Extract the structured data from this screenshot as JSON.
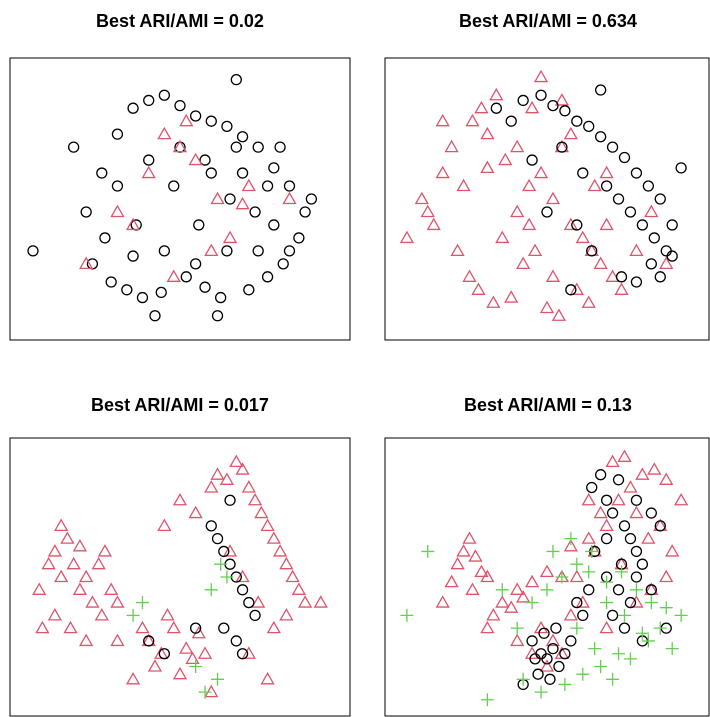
{
  "chart_data": [
    {
      "type": "scatter",
      "title": "Best ARI/AMI = 0.02",
      "xlim": [
        0,
        100
      ],
      "ylim": [
        0,
        100
      ],
      "series": [
        {
          "color": "#000000",
          "marker": "circle",
          "x": [
            3,
            16,
            68,
            42,
            62,
            20,
            25,
            30,
            35,
            40,
            45,
            50,
            55,
            60,
            65,
            70,
            75,
            80,
            85,
            90,
            22,
            28,
            33,
            38,
            44,
            52,
            58,
            63,
            72,
            78,
            83,
            88,
            92,
            48,
            56,
            66,
            74,
            36,
            26,
            82,
            30,
            40,
            50,
            60,
            70,
            80,
            45,
            55,
            65,
            75,
            35,
            85,
            58,
            68,
            78
          ],
          "y": [
            30,
            70,
            96,
            5,
            5,
            45,
            60,
            75,
            85,
            88,
            90,
            86,
            82,
            80,
            78,
            74,
            70,
            62,
            55,
            45,
            25,
            18,
            15,
            12,
            14,
            20,
            16,
            12,
            15,
            20,
            25,
            35,
            50,
            55,
            40,
            50,
            45,
            40,
            35,
            70,
            55,
            65,
            70,
            60,
            60,
            40,
            30,
            25,
            30,
            30,
            28,
            30,
            65,
            70,
            55
          ]
        },
        {
          "color": "#df536b",
          "marker": "triangle",
          "x": [
            45,
            50,
            55,
            62,
            70,
            72,
            30,
            35,
            60,
            66,
            40,
            52,
            20,
            85,
            48
          ],
          "y": [
            75,
            70,
            65,
            50,
            48,
            55,
            45,
            40,
            30,
            35,
            60,
            80,
            25,
            50,
            20
          ]
        }
      ]
    },
    {
      "type": "scatter",
      "title": "Best ARI/AMI = 0.634",
      "xlim": [
        0,
        100
      ],
      "ylim": [
        0,
        100
      ],
      "series": [
        {
          "color": "#df536b",
          "marker": "triangle",
          "x": [
            3,
            8,
            12,
            15,
            18,
            22,
            25,
            28,
            30,
            33,
            36,
            40,
            44,
            48,
            52,
            55,
            58,
            62,
            65,
            68,
            72,
            75,
            80,
            85,
            90,
            20,
            24,
            27,
            32,
            38,
            42,
            46,
            50,
            54,
            60,
            64,
            70,
            15,
            10,
            35,
            45,
            55,
            48,
            58,
            40,
            30,
            66,
            52,
            44,
            70
          ],
          "y": [
            35,
            50,
            40,
            60,
            70,
            55,
            80,
            85,
            75,
            90,
            65,
            45,
            55,
            60,
            50,
            70,
            40,
            35,
            30,
            25,
            20,
            15,
            30,
            45,
            25,
            30,
            20,
            15,
            10,
            12,
            25,
            30,
            8,
            5,
            15,
            10,
            40,
            80,
            45,
            35,
            85,
            88,
            97,
            75,
            70,
            62,
            55,
            20,
            40,
            60
          ]
        },
        {
          "color": "#000000",
          "marker": "circle",
          "x": [
            33,
            38,
            42,
            48,
            52,
            56,
            60,
            64,
            68,
            72,
            76,
            80,
            84,
            88,
            92,
            95,
            70,
            74,
            78,
            82,
            86,
            90,
            60,
            65,
            75,
            80,
            85,
            58,
            62,
            45,
            55,
            50,
            88,
            92,
            68
          ],
          "y": [
            85,
            80,
            88,
            90,
            86,
            84,
            80,
            78,
            74,
            70,
            66,
            60,
            55,
            50,
            40,
            62,
            55,
            50,
            45,
            40,
            35,
            30,
            40,
            30,
            20,
            18,
            25,
            15,
            60,
            65,
            70,
            45,
            20,
            28,
            92
          ]
        }
      ]
    },
    {
      "type": "scatter",
      "title": "Best ARI/AMI = 0.017",
      "xlim": [
        0,
        100
      ],
      "ylim": [
        0,
        100
      ],
      "series": [
        {
          "color": "#df536b",
          "marker": "triangle",
          "x": [
            5,
            8,
            10,
            12,
            14,
            16,
            18,
            20,
            22,
            10,
            15,
            20,
            25,
            6,
            12,
            18,
            24,
            28,
            30,
            26,
            45,
            50,
            55,
            60,
            62,
            65,
            68,
            70,
            72,
            74,
            76,
            78,
            80,
            82,
            84,
            86,
            88,
            90,
            70,
            75,
            80,
            66,
            72,
            78,
            84,
            40,
            44,
            48,
            52,
            56,
            42,
            50,
            54,
            38,
            46,
            58,
            35,
            30,
            95,
            60
          ],
          "y": [
            45,
            55,
            60,
            50,
            65,
            55,
            45,
            50,
            40,
            35,
            30,
            25,
            35,
            30,
            70,
            62,
            55,
            45,
            25,
            60,
            70,
            80,
            75,
            85,
            90,
            88,
            95,
            92,
            85,
            80,
            75,
            70,
            65,
            60,
            55,
            50,
            45,
            40,
            50,
            40,
            30,
            60,
            20,
            10,
            35,
            25,
            20,
            30,
            22,
            28,
            15,
            12,
            18,
            30,
            35,
            20,
            10,
            40,
            40,
            5
          ]
        },
        {
          "color": "#000000",
          "marker": "circle",
          "x": [
            60,
            62,
            64,
            66,
            68,
            70,
            72,
            74,
            64,
            68,
            40,
            45,
            55,
            70,
            66
          ],
          "y": [
            70,
            65,
            60,
            55,
            50,
            45,
            40,
            35,
            30,
            25,
            25,
            20,
            30,
            20,
            80
          ]
        },
        {
          "color": "#61d04f",
          "marker": "plus",
          "x": [
            35,
            38,
            60,
            65,
            62,
            58,
            55,
            63
          ],
          "y": [
            35,
            40,
            45,
            50,
            10,
            5,
            15,
            55
          ]
        }
      ]
    },
    {
      "type": "scatter",
      "title": "Best ARI/AMI = 0.13",
      "xlim": [
        0,
        100
      ],
      "ylim": [
        0,
        100
      ],
      "series": [
        {
          "color": "#df536b",
          "marker": "triangle",
          "x": [
            20,
            22,
            24,
            26,
            28,
            30,
            18,
            25,
            15,
            35,
            40,
            45,
            50,
            55,
            48,
            52,
            58,
            62,
            66,
            70,
            74,
            78,
            82,
            86,
            90,
            95,
            72,
            76,
            80,
            84,
            88,
            92,
            68,
            64,
            60,
            75,
            85,
            45,
            50,
            40,
            30,
            55,
            32,
            38,
            42,
            70,
            80,
            90,
            58,
            64
          ],
          "y": [
            55,
            60,
            65,
            58,
            52,
            50,
            48,
            45,
            40,
            40,
            45,
            48,
            52,
            50,
            30,
            25,
            35,
            40,
            60,
            70,
            80,
            85,
            90,
            92,
            88,
            80,
            95,
            97,
            75,
            65,
            70,
            60,
            75,
            80,
            50,
            55,
            45,
            20,
            15,
            25,
            30,
            20,
            35,
            38,
            42,
            30,
            40,
            50,
            62,
            65
          ]
        },
        {
          "color": "#000000",
          "marker": "circle",
          "x": [
            65,
            68,
            70,
            72,
            74,
            76,
            78,
            80,
            82,
            70,
            74,
            78,
            66,
            70,
            75,
            80,
            85,
            72,
            76,
            82,
            45,
            48,
            50,
            52,
            54,
            47,
            51,
            49,
            53,
            46,
            56,
            58,
            60,
            62,
            64,
            80,
            85,
            88,
            42,
            90
          ],
          "y": [
            85,
            90,
            80,
            75,
            88,
            70,
            65,
            60,
            55,
            50,
            45,
            40,
            60,
            65,
            55,
            50,
            45,
            35,
            30,
            25,
            25,
            20,
            18,
            22,
            15,
            12,
            10,
            28,
            30,
            18,
            20,
            25,
            40,
            35,
            45,
            80,
            75,
            70,
            8,
            30
          ]
        },
        {
          "color": "#61d04f",
          "marker": "plus",
          "x": [
            3,
            10,
            40,
            45,
            50,
            55,
            60,
            65,
            70,
            75,
            80,
            85,
            90,
            42,
            48,
            56,
            62,
            68,
            74,
            78,
            84,
            88,
            92,
            95,
            35,
            52,
            58,
            64,
            70,
            76,
            82,
            60,
            66,
            72,
            30
          ],
          "y": [
            35,
            60,
            30,
            40,
            45,
            50,
            55,
            60,
            48,
            52,
            45,
            40,
            38,
            10,
            5,
            8,
            12,
            15,
            20,
            18,
            25,
            30,
            22,
            35,
            45,
            60,
            65,
            52,
            40,
            35,
            28,
            30,
            22,
            10,
            2
          ]
        }
      ]
    }
  ]
}
